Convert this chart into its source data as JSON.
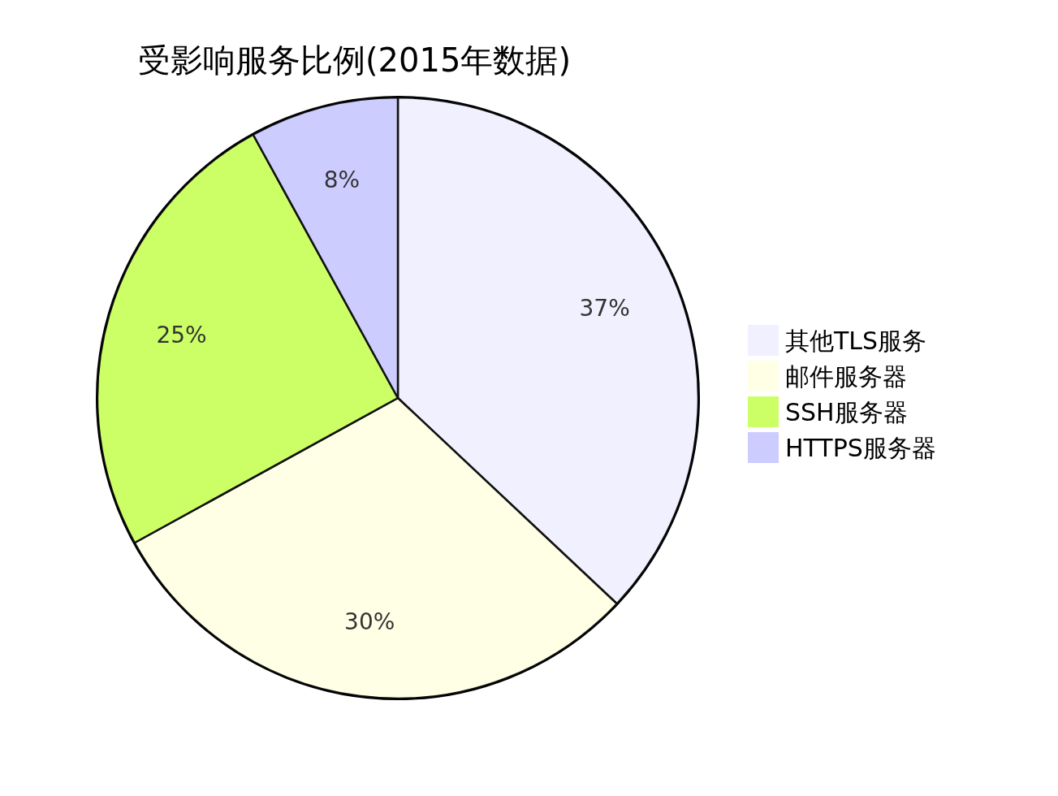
{
  "chart_data": {
    "type": "pie",
    "title": "受影响服务比例(2015年数据)",
    "categories": [
      "其他TLS服务",
      "邮件服务器",
      "SSH服务器",
      "HTTPS服务器"
    ],
    "values": [
      37,
      30,
      25,
      8
    ],
    "value_labels": [
      "37%",
      "30%",
      "25%",
      "8%"
    ],
    "colors": [
      "#f0f0ff",
      "#ffffe6",
      "#ccff66",
      "#ccccff"
    ],
    "legend": "right"
  }
}
